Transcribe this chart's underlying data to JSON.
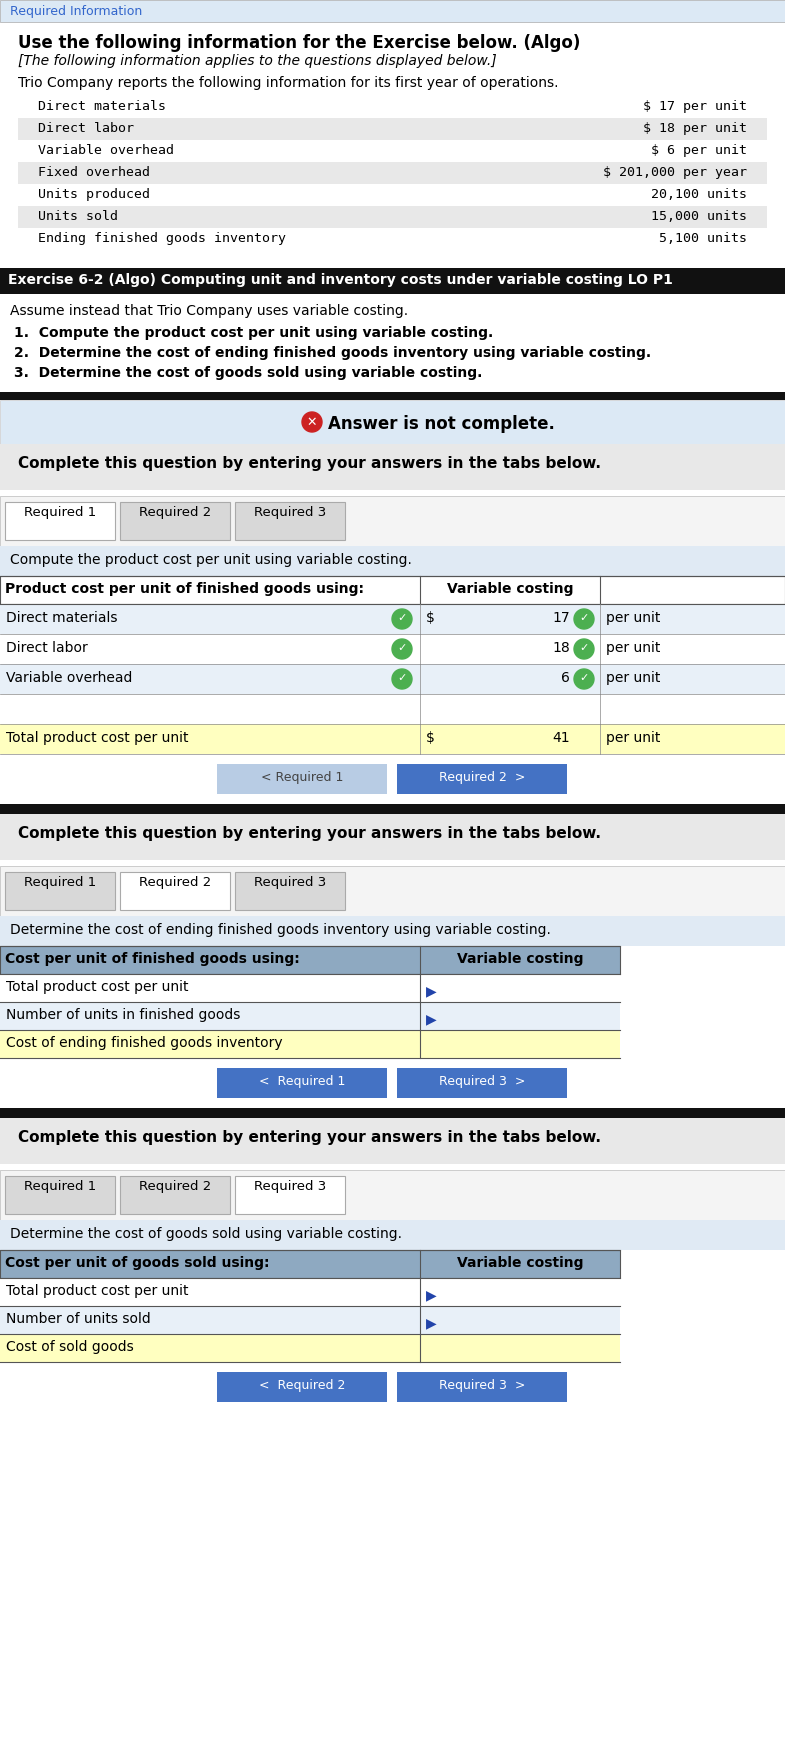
{
  "header_title": "Use the following information for the Exercise below. (Algo)",
  "header_subtitle": "[The following information applies to the questions displayed below.]",
  "header_intro": "Trio Company reports the following information for its first year of operations.",
  "info_rows": [
    [
      "Direct materials",
      "$ 17 per unit"
    ],
    [
      "Direct labor",
      "$ 18 per unit"
    ],
    [
      "Variable overhead",
      "$ 6 per unit"
    ],
    [
      "Fixed overhead",
      "$ 201,000 per year"
    ],
    [
      "Units produced",
      "20,100 units"
    ],
    [
      "Units sold",
      "15,000 units"
    ],
    [
      "Ending finished goods inventory",
      "5,100 units"
    ]
  ],
  "info_row_shaded": [
    false,
    true,
    false,
    true,
    false,
    true,
    false
  ],
  "exercise_title": "Exercise 6-2 (Algo) Computing unit and inventory costs under variable costing LO P1",
  "assume_text": "Assume instead that Trio Company uses variable costing.",
  "req_list": [
    "1.  Compute the product cost per unit using variable costing.",
    "2.  Determine the cost of ending finished goods inventory using variable costing.",
    "3.  Determine the cost of goods sold using variable costing."
  ],
  "answer_incomplete_text": "Answer is not complete.",
  "complete_question_text": "Complete this question by entering your answers in the tabs below.",
  "section1_title": "Compute the product cost per unit using variable costing.",
  "section1_col_header1": "Product cost per unit of finished goods using:",
  "section1_col_header2": "Variable costing",
  "section1_rows": [
    {
      "label": "Direct materials",
      "prefix": "$",
      "value": "17",
      "suffix": "per unit",
      "has_check": true
    },
    {
      "label": "Direct labor",
      "prefix": "",
      "value": "18",
      "suffix": "per unit",
      "has_check": true
    },
    {
      "label": "Variable overhead",
      "prefix": "",
      "value": "6",
      "suffix": "per unit",
      "has_check": true
    },
    {
      "label": "",
      "prefix": "",
      "value": "",
      "suffix": "",
      "has_check": false
    },
    {
      "label": "Total product cost per unit",
      "prefix": "$",
      "value": "41",
      "suffix": "per unit",
      "has_check": false,
      "yellow_bg": true
    }
  ],
  "btn1_left_text": "< Required 1",
  "btn1_right_text": "Required 2  >",
  "section2_title": "Determine the cost of ending finished goods inventory using variable costing.",
  "section2_col_header1": "Cost per unit of finished goods using:",
  "section2_col_header2": "Variable costing",
  "section2_rows": [
    {
      "label": "Total product cost per unit",
      "has_blue_arrow": true,
      "yellow_bg": false
    },
    {
      "label": "Number of units in finished goods",
      "has_blue_arrow": true,
      "yellow_bg": false
    },
    {
      "label": "Cost of ending finished goods inventory",
      "has_blue_arrow": false,
      "yellow_bg": true
    }
  ],
  "btn2_left_text": "<  Required 1",
  "btn2_right_text": "Required 3  >",
  "section3_title": "Determine the cost of goods sold using variable costing.",
  "section3_col_header1": "Cost per unit of goods sold using:",
  "section3_col_header2": "Variable costing",
  "section3_rows": [
    {
      "label": "Total product cost per unit",
      "has_blue_arrow": true,
      "yellow_bg": false
    },
    {
      "label": "Number of units sold",
      "has_blue_arrow": true,
      "yellow_bg": false
    },
    {
      "label": "Cost of sold goods",
      "has_blue_arrow": false,
      "yellow_bg": true
    }
  ],
  "btn3_left_text": "<  Required 2",
  "btn3_right_text": "Required 3  >",
  "bg_white": "#ffffff",
  "light_blue_bg": "#dce9f5",
  "gray_bg": "#e8e8e8",
  "dark_header_bg": "#8ea9c1",
  "yellow_bg": "#ffffc0",
  "black_bar": "#111111",
  "blue_btn": "#4472c4",
  "light_btn": "#b8cce4",
  "answer_bar_bg": "#dce9f5",
  "check_green": "#4caf50",
  "tab_active_bg": "#ffffff",
  "tab_inactive_bg": "#d8d8d8",
  "section_subtitle_bg": "#e0eaf4",
  "required_info_blue": "#3366cc"
}
